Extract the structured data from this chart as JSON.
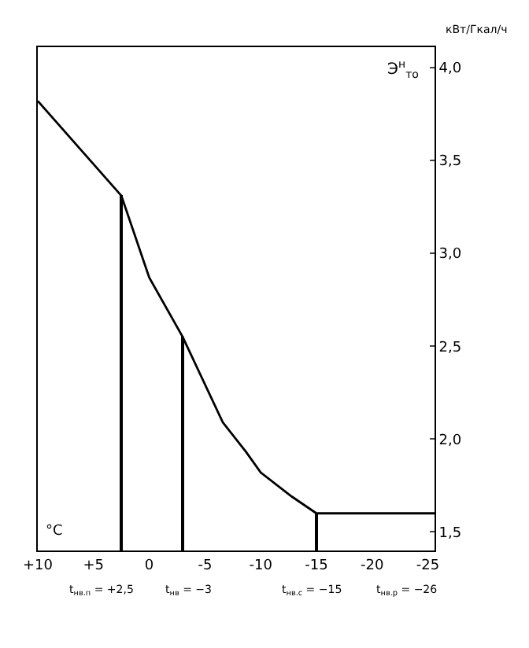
{
  "chart_data": {
    "type": "line",
    "ylabel": "Э$^{н}$$_{то}$",
    "xlabel": "°C",
    "annotations": [
      "кВт/Гкал/ч",
      "t$_{нв.п}$ = +2,5",
      "t$_{нв}$ = −3",
      "t$_{нв.с}$ = −15",
      "t$_{нв.р}$ = −26"
    ],
    "series": [
      {
        "color": "#000000",
        "x": [
          10,
          2.5,
          0,
          -3,
          -6.6,
          -8.7,
          -10,
          -12.8,
          -15,
          -25.6
        ],
        "values": [
          3.82,
          3.31,
          2.87,
          2.55,
          2.09,
          1.93,
          1.82,
          1.69,
          1.6,
          1.6
        ]
      },
      {
        "type": "bar",
        "color": "#000000",
        "x": [
          2.5,
          -3,
          -15
        ],
        "values": [
          3.31,
          2.55,
          1.6
        ]
      }
    ],
    "xlim": [
      10,
      -25.6
    ],
    "xticks": [
      {
        "value": 10,
        "label": "+10"
      },
      {
        "value": 5,
        "label": "+5"
      },
      0,
      -5,
      -10,
      -15,
      -20,
      -25
    ],
    "ylim": [
      1.4,
      4.11
    ],
    "yticks": [
      {
        "value": 1.5,
        "label": "1,5"
      },
      {
        "value": 2,
        "label": "2,0"
      },
      {
        "value": 2.5,
        "label": "2,5"
      },
      {
        "value": 3,
        "label": "3,0"
      },
      {
        "value": 3.5,
        "label": "3,5"
      },
      {
        "value": 4,
        "label": "4,0"
      }
    ],
    "grid": false,
    "marker": "none",
    "line_style": "solid"
  }
}
